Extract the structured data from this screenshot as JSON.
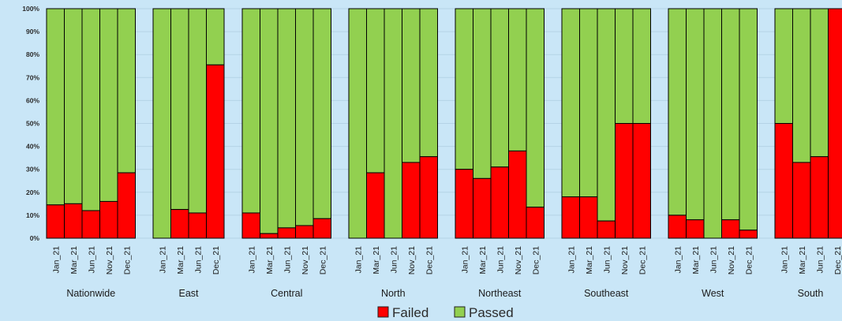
{
  "chart_data": {
    "type": "bar",
    "stacked": true,
    "percent": true,
    "ylim": [
      0,
      100
    ],
    "y_ticks": [
      "0%",
      "10%",
      "20%",
      "30%",
      "40%",
      "50%",
      "60%",
      "70%",
      "80%",
      "90%",
      "100%"
    ],
    "grid": true,
    "legend_position": "bottom",
    "groups": [
      {
        "name": "Nationwide",
        "categories": [
          "Jan_21",
          "Mar_21",
          "Jun_21",
          "Nov_21",
          "Dec_21"
        ],
        "failed": [
          14.5,
          15,
          12,
          16,
          28.5
        ]
      },
      {
        "name": "East",
        "categories": [
          "Jan_21",
          "Mar_21",
          "Jun_21",
          "Dec_21"
        ],
        "failed": [
          0,
          12.5,
          11,
          75.5
        ]
      },
      {
        "name": "Central",
        "categories": [
          "Jan_21",
          "Mar_21",
          "Jun_21",
          "Nov_21",
          "Dec_21"
        ],
        "failed": [
          11,
          2,
          4.5,
          5.5,
          8.5
        ]
      },
      {
        "name": "North",
        "categories": [
          "Jan_21",
          "Mar_21",
          "Jun_21",
          "Nov_21",
          "Dec_21"
        ],
        "failed": [
          0,
          28.5,
          0,
          33,
          35.5
        ]
      },
      {
        "name": "Northeast",
        "categories": [
          "Jan_21",
          "Mar_21",
          "Jun_21",
          "Nov_21",
          "Dec_21"
        ],
        "failed": [
          30,
          26,
          31,
          38,
          13.5
        ]
      },
      {
        "name": "Southeast",
        "categories": [
          "Jan_21",
          "Mar_21",
          "Jun_21",
          "Nov_21",
          "Dec_21"
        ],
        "failed": [
          18,
          18,
          7.5,
          50,
          50
        ]
      },
      {
        "name": "West",
        "categories": [
          "Jan_21",
          "Mar_21",
          "Jun_21",
          "Nov_21",
          "Dec_21"
        ],
        "failed": [
          10,
          8,
          0,
          8,
          3.5
        ]
      },
      {
        "name": "South",
        "categories": [
          "Jan_21",
          "Mar_21",
          "Jun_21",
          "Dec_21"
        ],
        "failed": [
          50,
          33,
          35.5,
          100
        ]
      }
    ],
    "series": [
      {
        "name": "Failed",
        "color": "#ff0000"
      },
      {
        "name": "Passed",
        "color": "#92d050"
      }
    ]
  }
}
